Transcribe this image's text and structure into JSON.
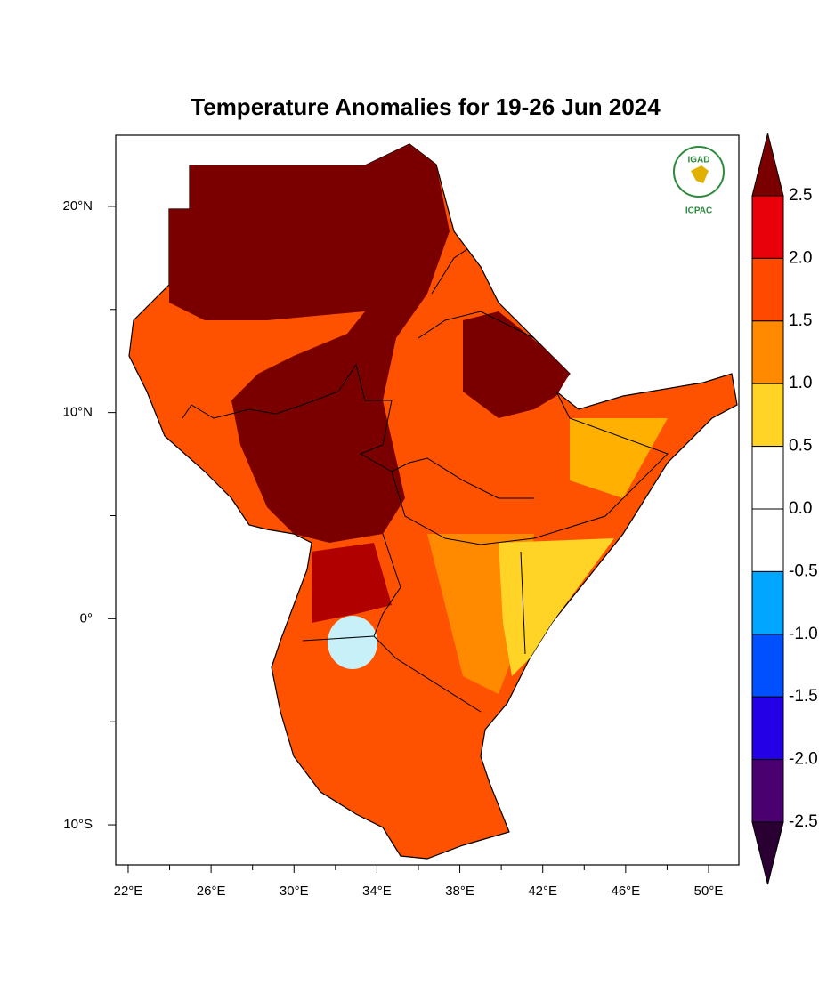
{
  "chart_data": {
    "type": "map",
    "title": "Temperature Anomalies for 19-26 Jun 2024",
    "logo": {
      "name": "IGAD",
      "subtitle": "ICPAC"
    },
    "xlim": [
      21.4,
      51.46
    ],
    "ylim": [
      -11.94,
      23.45
    ],
    "xticks": [
      {
        "value": 22,
        "label": "22°E"
      },
      {
        "value": 26,
        "label": "26°E"
      },
      {
        "value": 30,
        "label": "30°E"
      },
      {
        "value": 34,
        "label": "34°E"
      },
      {
        "value": 38,
        "label": "38°E"
      },
      {
        "value": 42,
        "label": "42°E"
      },
      {
        "value": 46,
        "label": "46°E"
      },
      {
        "value": 50,
        "label": "50°E"
      }
    ],
    "xminor": [
      24,
      28,
      32,
      36,
      40,
      44,
      48
    ],
    "yticks": [
      {
        "value": 20,
        "label": "20°N"
      },
      {
        "value": 10,
        "label": "10°N"
      },
      {
        "value": 0,
        "label": "0°"
      },
      {
        "value": -10,
        "label": "10°S"
      }
    ],
    "yminor": [
      15,
      5,
      -5
    ],
    "colorbar": {
      "levels": [
        2.5,
        {
          "value": 2,
          "label": "2.0"
        },
        1.5,
        {
          "value": 1,
          "label": "1.0"
        },
        0.5,
        {
          "value": 0,
          "label": "0.0"
        },
        -0.5,
        {
          "value": -1,
          "label": "-1.0"
        },
        -1.5,
        {
          "value": -2,
          "label": "-2.0"
        },
        -2.5
      ],
      "colors": [
        "#7a0000",
        "#e8000b",
        "#ff4800",
        "#ff8a00",
        "#ffd426",
        "#ffffff",
        "#ffffff",
        "#00a6ff",
        "#0050ff",
        "#2400e6",
        "#4a006e",
        "#2a0033"
      ]
    }
  }
}
